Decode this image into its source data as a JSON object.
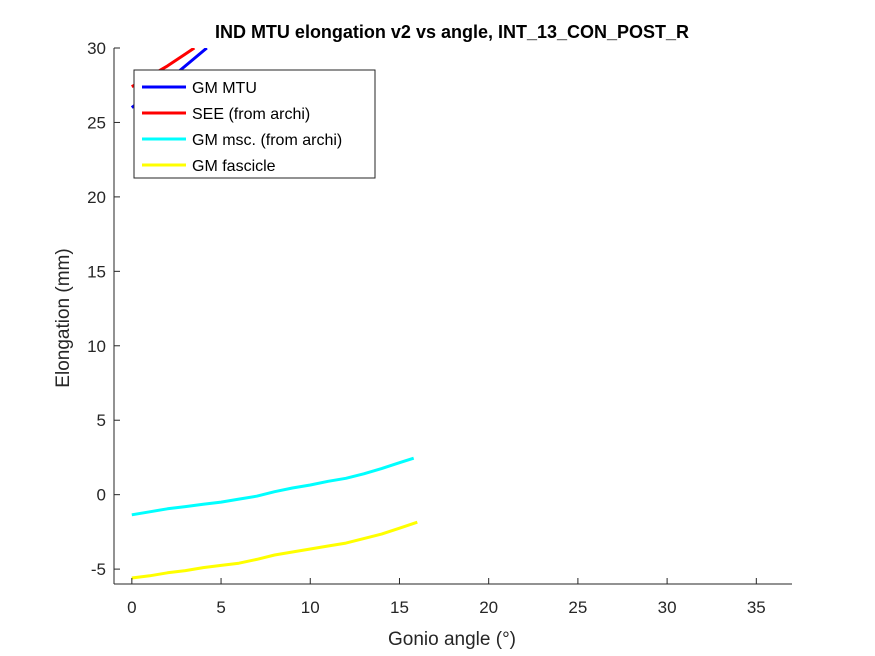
{
  "chart_data": {
    "type": "line",
    "title": "IND MTU elongation v2 vs angle, INT_13_CON_POST_R",
    "xlabel": "Gonio angle (°)",
    "ylabel": "Elongation (mm)",
    "xlim": [
      -1,
      37
    ],
    "ylim": [
      -6,
      30
    ],
    "xticks": [
      0,
      5,
      10,
      15,
      20,
      25,
      30,
      35
    ],
    "yticks": [
      -5,
      0,
      5,
      10,
      15,
      20,
      25,
      30
    ],
    "grid": false,
    "legend_position": "top-left",
    "series": [
      {
        "name": "GM MTU",
        "color": "#0000ff",
        "x": [
          0,
          1,
          2,
          3,
          4.2
        ],
        "y": [
          26.0,
          26.9,
          27.8,
          28.8,
          30.0
        ]
      },
      {
        "name": "SEE (from archi)",
        "color": "#ff0000",
        "x": [
          0,
          1,
          2,
          3,
          3.5
        ],
        "y": [
          27.4,
          28.1,
          28.8,
          29.6,
          30.0
        ]
      },
      {
        "name": "GM msc. (from archi)",
        "color": "#00ffff",
        "x": [
          0,
          1,
          2,
          3,
          4,
          5,
          6,
          7,
          8,
          9,
          10,
          11,
          12,
          13,
          14,
          15,
          15.8
        ],
        "y": [
          -1.35,
          -1.15,
          -0.95,
          -0.8,
          -0.65,
          -0.5,
          -0.3,
          -0.1,
          0.2,
          0.45,
          0.65,
          0.9,
          1.1,
          1.4,
          1.75,
          2.15,
          2.45
        ]
      },
      {
        "name": "GM fascicle",
        "color": "#ffff00",
        "x": [
          0,
          1,
          2,
          3,
          4,
          5,
          6,
          7,
          8,
          9,
          10,
          11,
          12,
          13,
          14,
          15,
          16
        ],
        "y": [
          -5.6,
          -5.45,
          -5.25,
          -5.1,
          -4.9,
          -4.75,
          -4.6,
          -4.35,
          -4.05,
          -3.85,
          -3.65,
          -3.45,
          -3.25,
          -2.95,
          -2.65,
          -2.25,
          -1.85
        ]
      }
    ]
  }
}
